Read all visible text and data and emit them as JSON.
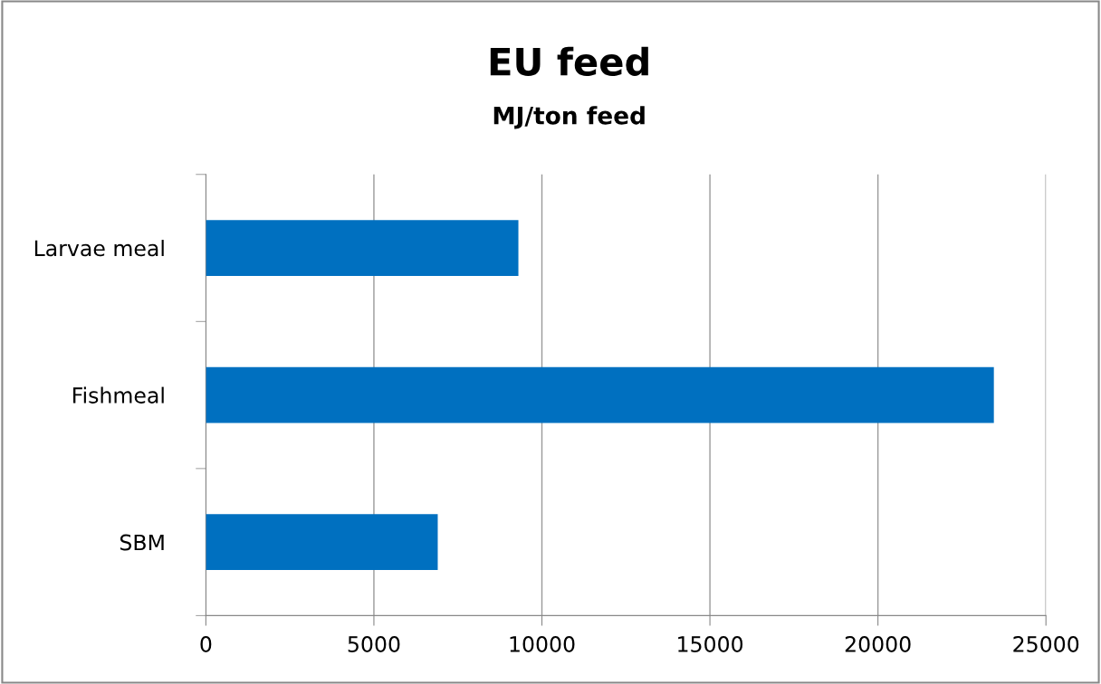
{
  "chart_data": {
    "type": "bar",
    "orientation": "horizontal",
    "title": "EU feed",
    "subtitle": "MJ/ton feed",
    "categories": [
      "Larvae meal",
      "Fishmeal",
      "SBM"
    ],
    "values": [
      9300,
      23450,
      6900
    ],
    "color": "#0070c0",
    "xlim": [
      0,
      25000
    ],
    "xticks": [
      0,
      5000,
      10000,
      15000,
      20000,
      25000
    ],
    "grid": "x"
  }
}
